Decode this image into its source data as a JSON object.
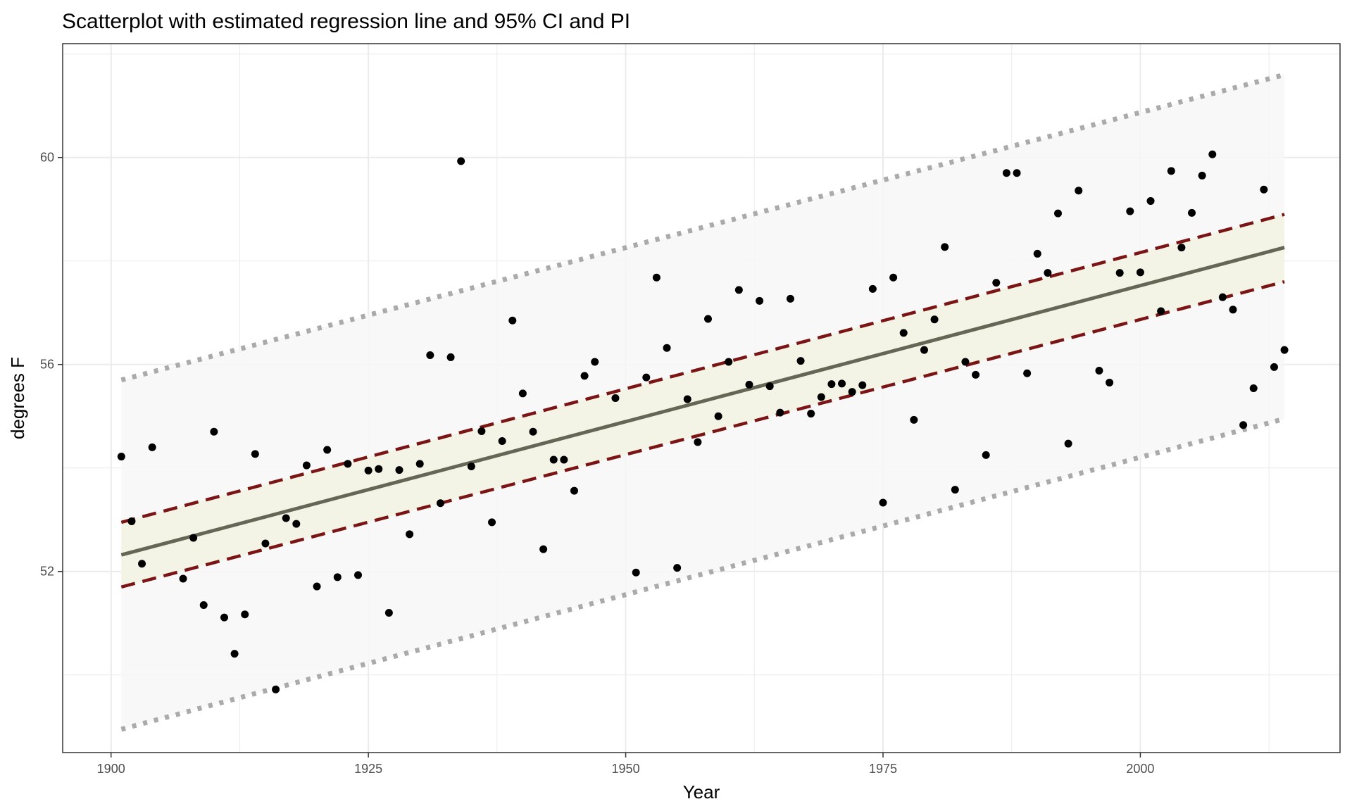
{
  "chart_data": {
    "type": "scatter",
    "title": "Scatterplot with estimated regression line and 95% CI and PI",
    "xlabel": "Year",
    "ylabel": "degrees F",
    "xlim": [
      1895.3,
      2019.4
    ],
    "ylim": [
      48.5,
      62.2
    ],
    "x_ticks": [
      1900,
      1925,
      1950,
      1975,
      2000
    ],
    "y_ticks": [
      52,
      56,
      60
    ],
    "x_tick_labels": [
      "1900",
      "1925",
      "1950",
      "1975",
      "2000"
    ],
    "y_tick_labels": [
      "52",
      "56",
      "60"
    ],
    "grid": true,
    "colors": {
      "points": "#000000",
      "fit_line": "#666655",
      "ci_band": "#f3f3e6",
      "ci_lines": "#7b1414",
      "pi_band": "#f7f7f7",
      "pi_lines": "#aaaaaa",
      "grid": "#ebebeb",
      "panel_border": "#333333"
    },
    "regression": {
      "x": [
        1901,
        2014
      ],
      "fit": [
        52.32,
        58.26
      ],
      "ci_lower": [
        51.7,
        57.6
      ],
      "ci_upper": [
        52.95,
        58.9
      ],
      "pi_lower": [
        48.95,
        54.95
      ],
      "pi_upper": [
        55.7,
        61.6
      ]
    },
    "points": {
      "x": [
        1901,
        1902,
        1903,
        1904,
        1907,
        1908,
        1909,
        1910,
        1911,
        1912,
        1913,
        1914,
        1915,
        1916,
        1917,
        1918,
        1919,
        1920,
        1921,
        1922,
        1923,
        1924,
        1925,
        1926,
        1927,
        1928,
        1929,
        1930,
        1931,
        1932,
        1933,
        1934,
        1935,
        1936,
        1937,
        1938,
        1939,
        1940,
        1941,
        1942,
        1943,
        1944,
        1945,
        1946,
        1947,
        1949,
        1951,
        1952,
        1953,
        1954,
        1955,
        1956,
        1957,
        1958,
        1959,
        1960,
        1961,
        1962,
        1963,
        1964,
        1965,
        1966,
        1967,
        1968,
        1969,
        1970,
        1971,
        1972,
        1973,
        1974,
        1975,
        1976,
        1977,
        1978,
        1979,
        1980,
        1981,
        1982,
        1983,
        1984,
        1985,
        1986,
        1987,
        1988,
        1989,
        1990,
        1991,
        1992,
        1993,
        1994,
        1996,
        1997,
        1998,
        1999,
        2000,
        2001,
        2002,
        2003,
        2004,
        2005,
        2006,
        2007,
        2008,
        2009,
        2010,
        2011,
        2012,
        2013,
        2014
      ],
      "y": [
        54.22,
        52.97,
        52.15,
        54.4,
        51.86,
        52.65,
        51.35,
        54.7,
        51.11,
        50.41,
        51.17,
        54.27,
        52.54,
        49.72,
        53.03,
        52.92,
        54.05,
        51.71,
        54.35,
        51.89,
        54.08,
        51.93,
        53.95,
        53.98,
        51.2,
        53.96,
        52.72,
        54.08,
        56.18,
        53.32,
        56.14,
        59.93,
        54.03,
        54.71,
        52.95,
        54.52,
        56.85,
        55.44,
        54.7,
        52.43,
        54.16,
        54.16,
        53.56,
        55.78,
        56.05,
        55.35,
        51.98,
        55.75,
        57.68,
        56.32,
        52.07,
        55.33,
        54.5,
        56.88,
        55.0,
        56.05,
        57.44,
        55.61,
        57.23,
        55.58,
        55.07,
        57.27,
        56.07,
        55.05,
        55.37,
        55.62,
        55.63,
        55.47,
        55.6,
        57.46,
        53.33,
        57.68,
        56.61,
        54.93,
        56.28,
        56.87,
        58.27,
        53.58,
        56.05,
        55.8,
        54.25,
        57.58,
        59.7,
        59.7,
        55.83,
        58.14,
        57.77,
        58.92,
        54.47,
        59.36,
        55.88,
        55.65,
        57.77,
        58.96,
        57.78,
        59.16,
        57.03,
        59.74,
        58.26,
        58.93,
        59.65,
        60.06,
        57.3,
        57.06,
        54.83,
        55.54,
        59.38,
        55.95,
        56.28
      ]
    }
  }
}
